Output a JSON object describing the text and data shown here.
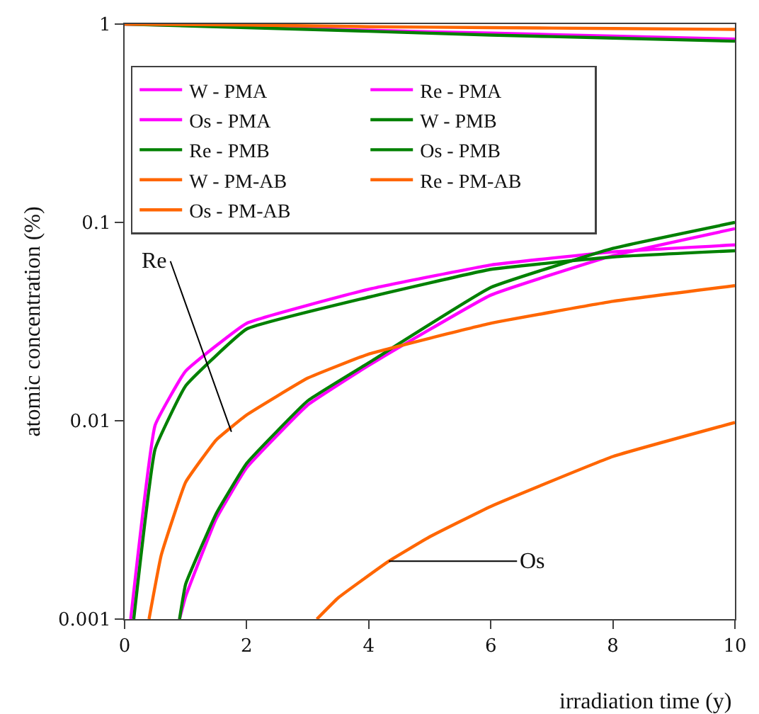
{
  "chart_data": {
    "type": "line",
    "xlabel": "irradiation time (y)",
    "ylabel": "atomic concentration (%)",
    "log": "y",
    "xlim": [
      0,
      10
    ],
    "xticks": [
      0,
      2,
      4,
      6,
      8,
      10
    ],
    "ylim": [
      0.001,
      1
    ],
    "yticks": [
      0.001,
      0.01,
      0.1,
      1
    ],
    "legend": "top",
    "marker": "none",
    "line_style": "solid",
    "series": [
      {
        "name": "W - PMA",
        "color": "#ff00ff",
        "x": [
          0,
          2,
          4,
          6,
          8,
          10
        ],
        "values": [
          1,
          0.97,
          0.93,
          0.9,
          0.87,
          0.84
        ]
      },
      {
        "name": "Re - PMA",
        "color": "#ff00ff",
        "x": [
          0.1,
          0.5,
          1,
          2,
          4,
          6,
          8,
          10
        ],
        "values": [
          0.001,
          0.0095,
          0.0178,
          0.031,
          0.046,
          0.061,
          0.071,
          0.077
        ]
      },
      {
        "name": "Os - PMA",
        "color": "#ff00ff",
        "x": [
          0.9,
          1,
          1.5,
          2,
          3,
          4,
          6,
          8,
          10
        ],
        "values": [
          0.001,
          0.0013,
          0.0032,
          0.0058,
          0.012,
          0.019,
          0.043,
          0.068,
          0.093
        ]
      },
      {
        "name": "W - PMB",
        "color": "#008000",
        "x": [
          0,
          2,
          4,
          6,
          8,
          10
        ],
        "values": [
          1,
          0.96,
          0.92,
          0.88,
          0.85,
          0.82
        ]
      },
      {
        "name": "Re - PMB",
        "color": "#008000",
        "x": [
          0.15,
          0.5,
          1,
          2,
          4,
          6,
          8,
          10
        ],
        "values": [
          0.001,
          0.0072,
          0.015,
          0.029,
          0.042,
          0.058,
          0.067,
          0.072
        ]
      },
      {
        "name": "Os - PMB",
        "color": "#008000",
        "x": [
          0.9,
          1,
          1.5,
          2,
          3,
          4,
          6,
          8,
          10
        ],
        "values": [
          0.001,
          0.0015,
          0.0034,
          0.0061,
          0.0126,
          0.0196,
          0.047,
          0.074,
          0.1
        ]
      },
      {
        "name": "W - PM-AB",
        "color": "#ff6600",
        "x": [
          0,
          2,
          4,
          6,
          8,
          10
        ],
        "values": [
          1,
          0.99,
          0.97,
          0.96,
          0.95,
          0.94
        ]
      },
      {
        "name": "Re - PM-AB",
        "color": "#ff6600",
        "x": [
          0.4,
          0.6,
          1,
          1.5,
          2,
          3,
          4,
          6,
          8,
          10
        ],
        "values": [
          0.001,
          0.0021,
          0.0049,
          0.008,
          0.0107,
          0.0164,
          0.0217,
          0.031,
          0.04,
          0.048
        ]
      },
      {
        "name": "Os - PM-AB",
        "color": "#ff6600",
        "x": [
          3.15,
          3.5,
          4.33,
          5,
          6,
          8,
          10
        ],
        "values": [
          0.001,
          0.00128,
          0.00196,
          0.0026,
          0.0037,
          0.0066,
          0.0098
        ]
      }
    ],
    "annotations": [
      {
        "text": "Re",
        "x": 1.75,
        "y": 0.0088
      },
      {
        "text": "Os",
        "x": 4.33,
        "y": 0.00196
      }
    ]
  }
}
